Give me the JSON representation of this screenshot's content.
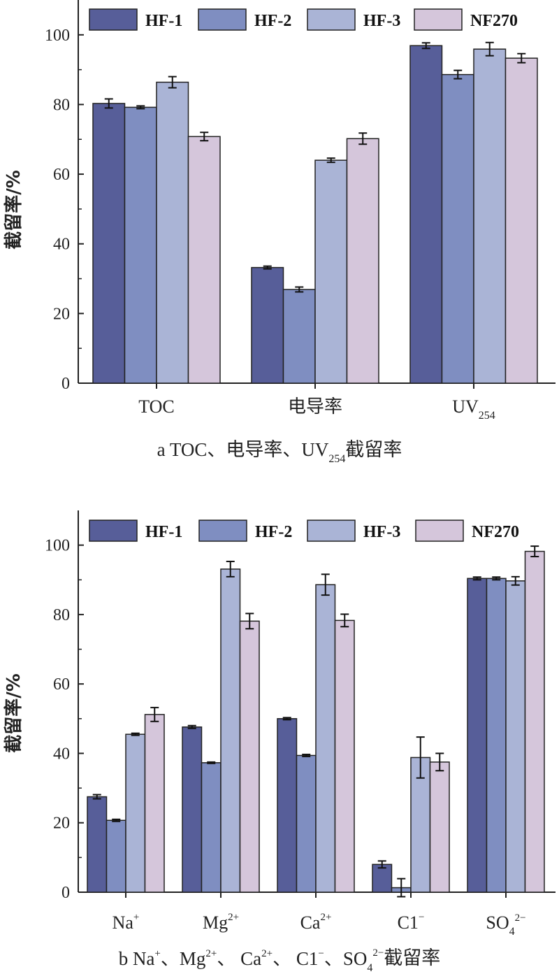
{
  "colors": {
    "HF-1": "#575e99",
    "HF-2": "#7f8ec1",
    "HF-3": "#aab4d6",
    "NF270": "#d5c6db"
  },
  "legend": [
    "HF-1",
    "HF-2",
    "HF-3",
    "NF270"
  ],
  "chart_data": [
    {
      "type": "bar",
      "ylabel": "截留率/%",
      "ylim": [
        0,
        110
      ],
      "yticks": [
        "0",
        "20",
        "40",
        "60",
        "80",
        "100"
      ],
      "categories": [
        "TOC",
        "电导率",
        "UV254"
      ],
      "category_labels": [
        {
          "base": "TOC",
          "script": "",
          "mode": ""
        },
        {
          "base": "电导率",
          "script": "",
          "mode": ""
        },
        {
          "base": "UV",
          "script": "254",
          "mode": "sub"
        }
      ],
      "series": [
        {
          "name": "HF-1",
          "values": [
            80.3,
            33.2,
            96.9
          ],
          "errors": [
            1.3,
            0.4,
            0.8
          ]
        },
        {
          "name": "HF-2",
          "values": [
            79.2,
            26.9,
            88.6
          ],
          "errors": [
            0.4,
            0.7,
            1.2
          ]
        },
        {
          "name": "HF-3",
          "values": [
            86.4,
            64.0,
            95.9
          ],
          "errors": [
            1.6,
            0.6,
            1.9
          ]
        },
        {
          "name": "NF270",
          "values": [
            70.8,
            70.2,
            93.3
          ],
          "errors": [
            1.2,
            1.6,
            1.3
          ]
        }
      ],
      "caption": {
        "prefix": "a TOC、电导率、UV",
        "sub": "254",
        "suffix": "截留率"
      }
    },
    {
      "type": "bar",
      "ylabel": "截留率/%",
      "ylim": [
        0,
        110
      ],
      "yticks": [
        "0",
        "20",
        "40",
        "60",
        "80",
        "100"
      ],
      "categories": [
        "Na+",
        "Mg2+",
        "Ca2+",
        "C1−",
        "SO42−"
      ],
      "category_labels": [
        {
          "base": "Na",
          "script": "+",
          "mode": "sup"
        },
        {
          "base": "Mg",
          "script": "2+",
          "mode": "sup"
        },
        {
          "base": "Ca",
          "script": "2+",
          "mode": "sup"
        },
        {
          "base": "C1",
          "script": "−",
          "mode": "sup"
        },
        {
          "base": "SO",
          "script": "4",
          "mode": "sub",
          "script2": "2−"
        }
      ],
      "series": [
        {
          "name": "HF-1",
          "values": [
            27.5,
            47.6,
            50.0,
            8.0,
            90.4
          ],
          "errors": [
            0.6,
            0.4,
            0.3,
            1.0,
            0.4
          ]
        },
        {
          "name": "HF-2",
          "values": [
            20.7,
            37.3,
            39.4,
            1.3,
            90.4
          ],
          "errors": [
            0.3,
            0.2,
            0.3,
            2.6,
            0.4
          ]
        },
        {
          "name": "HF-3",
          "values": [
            45.5,
            93.1,
            88.6,
            38.8,
            89.7
          ],
          "errors": [
            0.3,
            2.2,
            3.0,
            5.9,
            1.2
          ]
        },
        {
          "name": "NF270",
          "values": [
            51.2,
            78.1,
            78.3,
            37.5,
            98.2
          ],
          "errors": [
            2.0,
            2.2,
            1.8,
            2.5,
            1.5
          ]
        }
      ],
      "caption": {
        "parts": [
          {
            "t": "b Na"
          },
          {
            "t": "+",
            "m": "sup"
          },
          {
            "t": "、Mg"
          },
          {
            "t": "2+",
            "m": "sup"
          },
          {
            "t": "、 Ca"
          },
          {
            "t": "2+",
            "m": "sup"
          },
          {
            "t": "、 C1"
          },
          {
            "t": "−",
            "m": "sup"
          },
          {
            "t": "、SO"
          },
          {
            "t": "4",
            "m": "sub"
          },
          {
            "t": "2−",
            "m": "sup"
          },
          {
            "t": "截留率"
          }
        ]
      }
    }
  ]
}
